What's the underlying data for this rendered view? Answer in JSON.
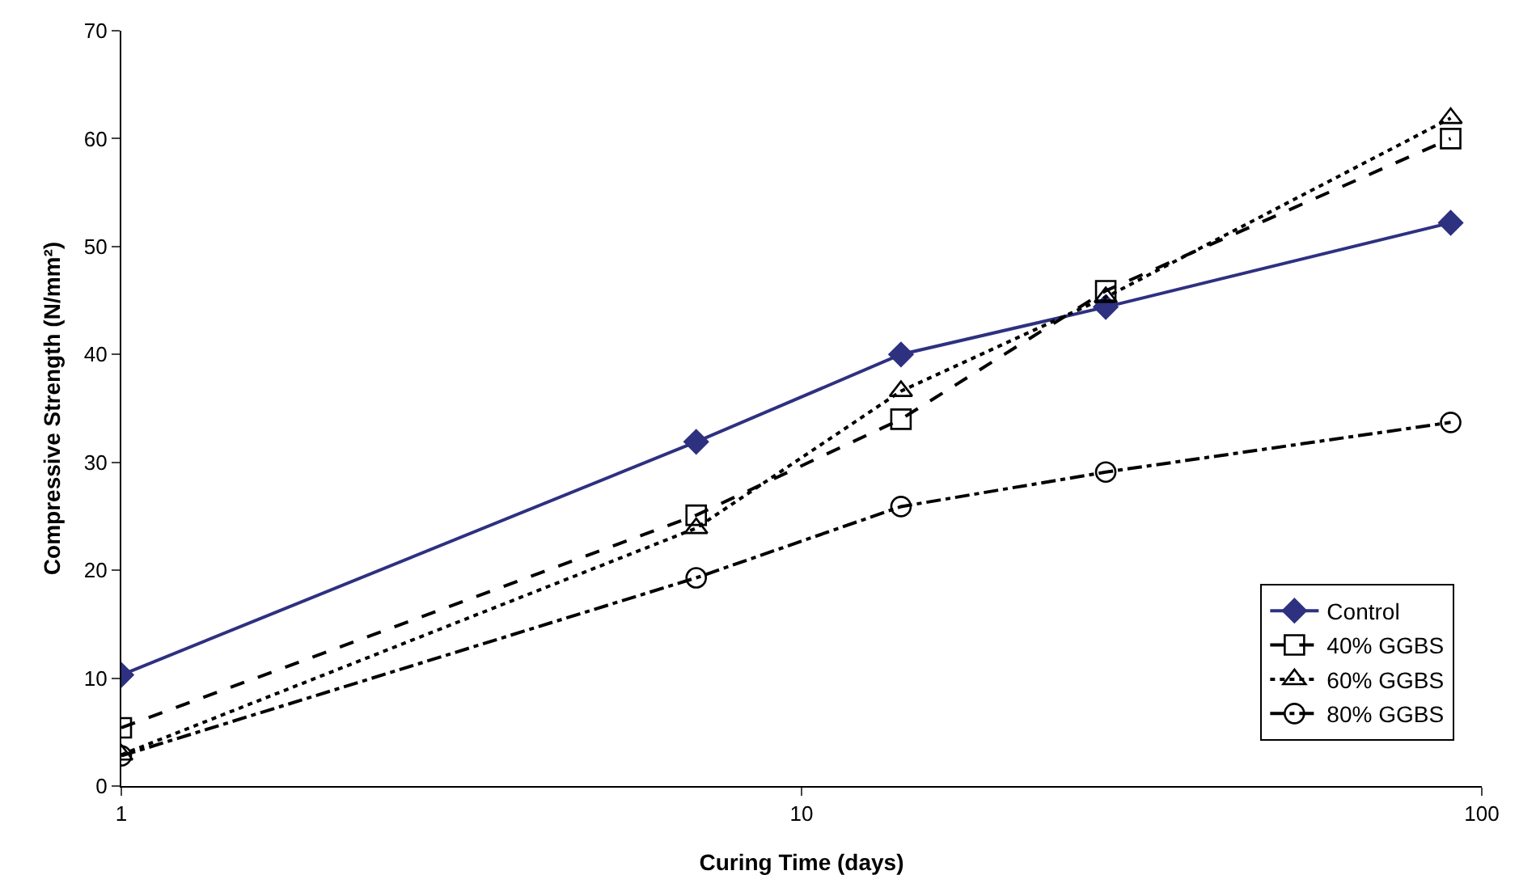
{
  "chart_data": {
    "type": "line",
    "xlabel": "Curing Time (days)",
    "ylabel": "Compressive Strength (N/mm²)",
    "log": "x",
    "x": [
      1,
      7,
      14,
      28,
      90
    ],
    "xlim": [
      1,
      100
    ],
    "xticks": [
      1,
      10,
      100
    ],
    "ylim": [
      0,
      70
    ],
    "yticks": [
      0,
      10,
      20,
      30,
      40,
      50,
      60,
      70
    ],
    "grid": false,
    "legend": "bottom right",
    "series": [
      {
        "name": "Control",
        "color": "#2e3180",
        "marker": "diamond",
        "line_style": "solid",
        "values": [
          10.3,
          31.9,
          40.0,
          44.4,
          52.2
        ]
      },
      {
        "name": "40% GGBS",
        "color": "#000000",
        "marker": "square",
        "line_style": "dashed",
        "values": [
          5.4,
          25.1,
          34.0,
          45.9,
          60.0
        ]
      },
      {
        "name": "60% GGBS",
        "color": "#000000",
        "marker": "triangle",
        "line_style": "dotted",
        "values": [
          2.9,
          23.9,
          36.6,
          45.3,
          61.9
        ]
      },
      {
        "name": "80% GGBS",
        "color": "#000000",
        "marker": "circle",
        "line_style": "dashdot",
        "values": [
          2.8,
          19.3,
          25.9,
          29.1,
          33.7
        ]
      }
    ]
  }
}
